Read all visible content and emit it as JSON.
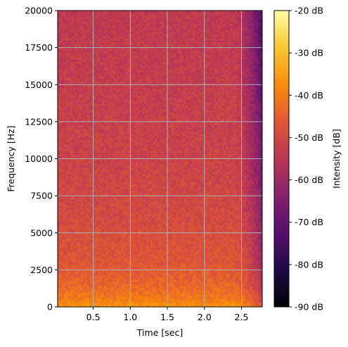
{
  "chart_data": {
    "type": "heatmap",
    "title": "",
    "xlabel": "Time [sec]",
    "ylabel": "Frequency [Hz]",
    "xlim": [
      0.02,
      2.78
    ],
    "ylim": [
      0,
      20000
    ],
    "x_ticks": [
      0.5,
      1.0,
      1.5,
      2.0,
      2.5
    ],
    "x_tick_labels": [
      "0.5",
      "1.0",
      "1.5",
      "2.0",
      "2.5"
    ],
    "y_ticks": [
      0,
      2500,
      5000,
      7500,
      10000,
      12500,
      15000,
      17500,
      20000
    ],
    "y_tick_labels": [
      "0",
      "2500",
      "5000",
      "7500",
      "10000",
      "12500",
      "15000",
      "17500",
      "20000"
    ],
    "grid": true,
    "grid_color": "#b0b0b0",
    "colormap": "inferno",
    "colorbar": {
      "label": "Intensity [dB]",
      "range": [
        -90,
        -20
      ],
      "ticks": [
        -90,
        -80,
        -70,
        -60,
        -50,
        -40,
        -30,
        -20
      ],
      "tick_labels": [
        "-90 dB",
        "-80 dB",
        "-70 dB",
        "-60 dB",
        "-50 dB",
        "-40 dB",
        "-30 dB",
        "-20 dB"
      ],
      "placement": "right"
    },
    "intensity_profile_db": {
      "frequency_hz": [
        0,
        500,
        1500,
        3000,
        6000,
        10000,
        15000,
        20000
      ],
      "level_db": [
        -36,
        -40,
        -44,
        -47,
        -49.5,
        -51.5,
        -53,
        -54
      ]
    },
    "time_fade": {
      "start_sec": 2.4,
      "end_sec": 2.78,
      "drop_db_at_end": 20
    }
  }
}
